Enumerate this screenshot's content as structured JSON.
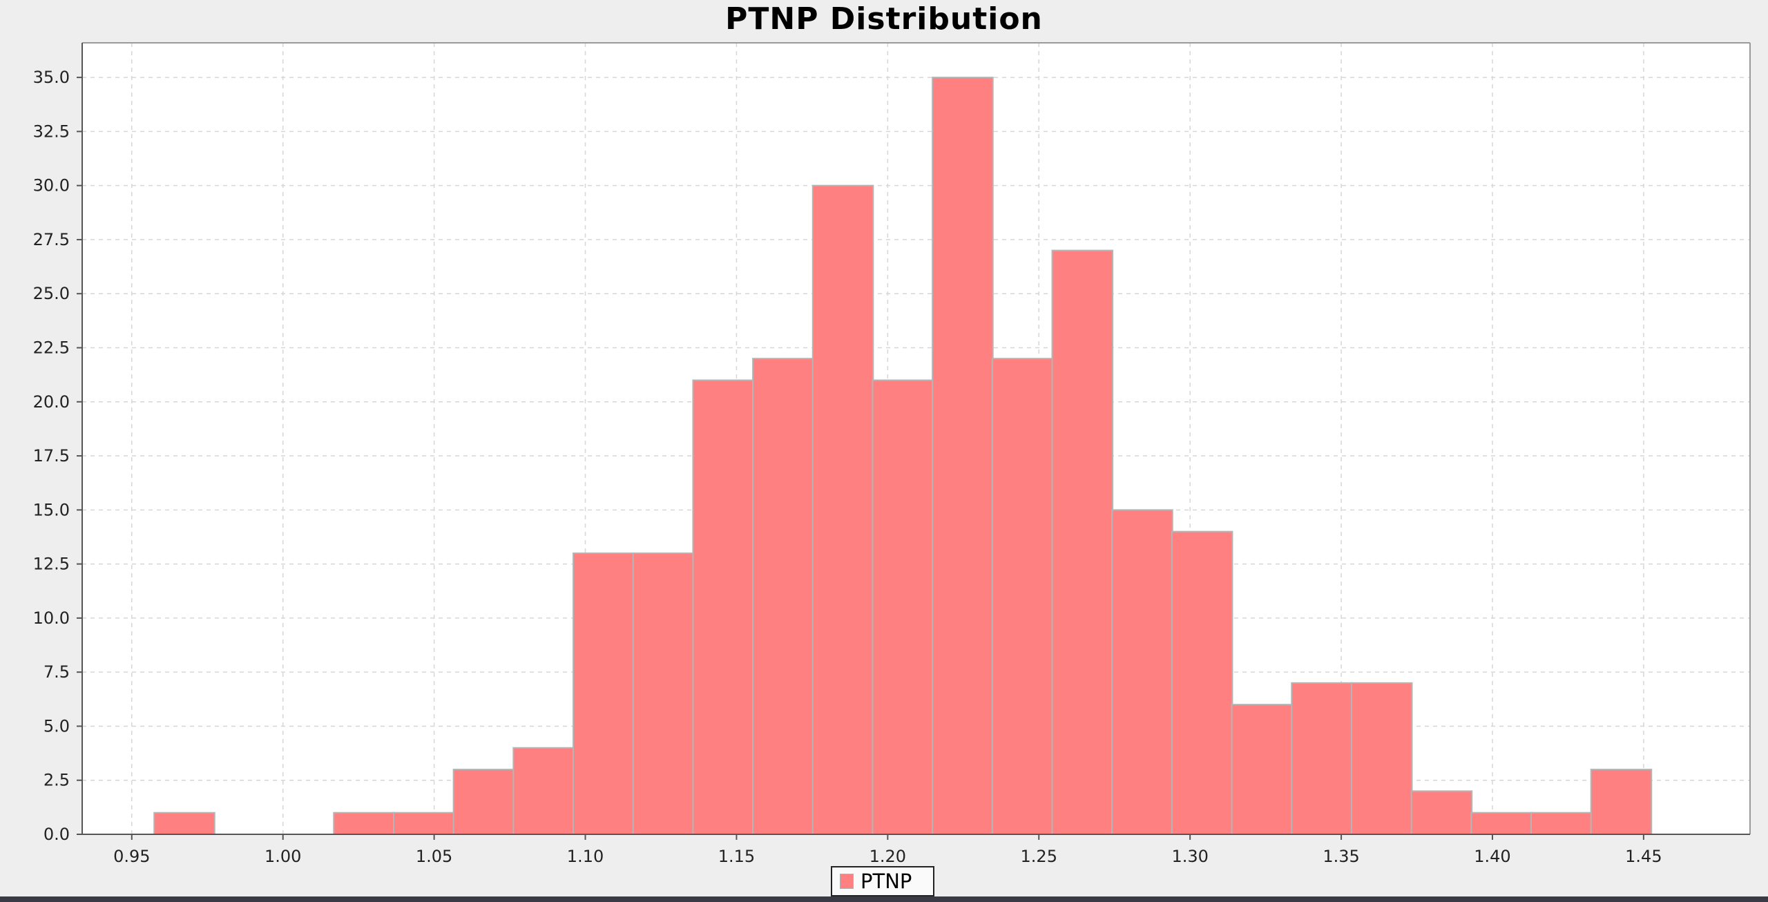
{
  "chart_data": {
    "type": "bar",
    "title": "PTNP Distribution",
    "xlabel": "",
    "ylabel": "",
    "xlim": [
      0.9336,
      1.4852
    ],
    "ylim": [
      0,
      36.6
    ],
    "bin_width": 0.02,
    "x_ticks": [
      "0.95",
      "1.00",
      "1.05",
      "1.10",
      "1.15",
      "1.20",
      "1.25",
      "1.30",
      "1.35",
      "1.40",
      "1.45"
    ],
    "y_ticks": [
      "0.0",
      "2.5",
      "5.0",
      "7.5",
      "10.0",
      "12.5",
      "15.0",
      "17.5",
      "20.0",
      "22.5",
      "25.0",
      "27.5",
      "30.0",
      "32.5",
      "35.0"
    ],
    "grid": true,
    "legend_position": "bottom-center",
    "series": [
      {
        "name": "PTNP",
        "color": "#ff8080",
        "bin_starts": [
          0.9574,
          0.9772,
          0.997,
          1.0168,
          1.0366,
          1.0564,
          1.0762,
          1.096,
          1.1158,
          1.1356,
          1.1554,
          1.1752,
          1.195,
          1.2148,
          1.2346,
          1.2544,
          1.2742,
          1.294,
          1.3138,
          1.3336,
          1.3534,
          1.3732,
          1.393,
          1.4128,
          1.4326
        ],
        "values": [
          1,
          0,
          0,
          1,
          1,
          3,
          4,
          13,
          13,
          21,
          22,
          30,
          21,
          35,
          22,
          27,
          15,
          14,
          6,
          7,
          7,
          2,
          1,
          1,
          3
        ]
      }
    ]
  },
  "legend": {
    "label": "PTNP"
  }
}
